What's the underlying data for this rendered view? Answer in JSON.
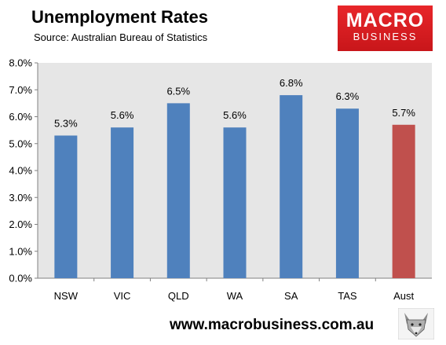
{
  "header": {
    "title": "Unemployment Rates",
    "subtitle": "Source: Australian Bureau of Statistics"
  },
  "logo": {
    "line1": "MACRO",
    "line2": "BUSINESS",
    "color": "#d81e22"
  },
  "footer": {
    "url": "www.macrobusiness.com.au"
  },
  "colors": {
    "bar": "#4f81bd",
    "highlight": "#c0504d",
    "plot_bg": "#e6e6e6"
  },
  "chart_data": {
    "type": "bar",
    "categories": [
      "NSW",
      "VIC",
      "QLD",
      "WA",
      "SA",
      "TAS",
      "Aust"
    ],
    "values": [
      5.3,
      5.6,
      6.5,
      5.6,
      6.8,
      6.3,
      5.7
    ],
    "data_labels": [
      "5.3%",
      "5.6%",
      "6.5%",
      "5.6%",
      "6.8%",
      "6.3%",
      "5.7%"
    ],
    "highlight_category": "Aust",
    "ylim": [
      0,
      8
    ],
    "y_ticks": [
      0,
      1,
      2,
      3,
      4,
      5,
      6,
      7,
      8
    ],
    "y_tick_labels": [
      "0.0%",
      "1.0%",
      "2.0%",
      "3.0%",
      "4.0%",
      "5.0%",
      "6.0%",
      "7.0%",
      "8.0%"
    ],
    "grid": false,
    "legend": "none"
  }
}
